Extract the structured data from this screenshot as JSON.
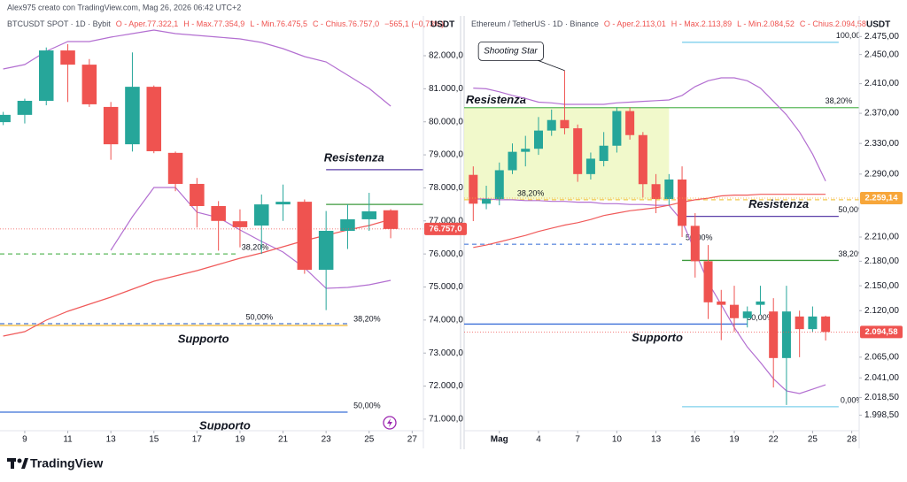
{
  "attribution": "Alex975 creato con TradingView.com, Mag 26, 2026 06:42 UTC+2",
  "brand": "TradingView",
  "chart_data": [
    {
      "type": "candlestick",
      "info": "BTCUSDT SPOT · 1D · Bybit",
      "ohlc_text": [
        "O - Aper.77.322,1",
        "H - Max.77.354,9",
        "L - Min.76.475,5",
        "C - Chius.76.757,0"
      ],
      "change": "−565,1 (−0,73%)",
      "unit": "USDT",
      "x": [
        8,
        9,
        10,
        11,
        12,
        13,
        14,
        15,
        16,
        17,
        18,
        19,
        20,
        21,
        22,
        23,
        24,
        25,
        26
      ],
      "open": [
        79990,
        80210,
        80635,
        82160,
        81730,
        80450,
        79320,
        81060,
        79060,
        78120,
        77450,
        76990,
        76860,
        77500,
        77580,
        75520,
        76700,
        77050,
        77322.1
      ],
      "high": [
        80300,
        80700,
        82250,
        82350,
        81900,
        80600,
        82100,
        81100,
        79100,
        78300,
        77600,
        77350,
        77800,
        78100,
        77650,
        77300,
        77500,
        77850,
        77354.9
      ],
      "low": [
        79900,
        79950,
        80500,
        80600,
        80450,
        78850,
        79100,
        79050,
        77900,
        76800,
        76100,
        76200,
        76000,
        77000,
        75400,
        74300,
        76150,
        76700,
        76475.5
      ],
      "close": [
        80210,
        80635,
        82160,
        81730,
        80530,
        79320,
        81060,
        79110,
        78120,
        77450,
        77000,
        76810,
        77500,
        77580,
        75520,
        76700,
        77050,
        77290,
        76757
      ],
      "up_color": "#26a69a",
      "down_color": "#ef5350",
      "lines": [
        {
          "color": "#b36fd1",
          "values": [
            81599,
            81732,
            82134,
            82428,
            82428,
            82562,
            82669,
            82776,
            82669,
            82616,
            82562,
            82509,
            82402,
            82214,
            81973,
            81813,
            81411,
            81010,
            80474
          ]
        },
        {
          "color": "#b36fd1",
          "values": [
            null,
            null,
            null,
            null,
            null,
            76111,
            77128,
            78011,
            78011,
            77262,
            77101,
            76727,
            76378,
            76057,
            75576,
            74960,
            74986,
            75067,
            75201
          ]
        },
        {
          "color": "#f05a5a",
          "values": [
            73514,
            73648,
            73996,
            74264,
            74478,
            74692,
            74933,
            75174,
            75334,
            75495,
            75683,
            75870,
            76030,
            76218,
            76405,
            76566,
            76726,
            76860,
            77047
          ]
        }
      ],
      "levels": [
        {
          "value": 78550,
          "color": "#5b3fa8",
          "from": 23,
          "to": 27.5,
          "labels": [
            {
              "text": "Resistenza",
              "at": 24.3,
              "pos": "above",
              "size": "big"
            }
          ]
        },
        {
          "value": 77500,
          "color": "#3d9a3d",
          "from": 23,
          "to": 27.5
        },
        {
          "value": 76000,
          "color": "#5cb85c",
          "dash": true,
          "from": 7.85,
          "to": 18.8,
          "labels": [
            {
              "text": "38,20%",
              "at": 19.7,
              "pos": "above"
            }
          ]
        },
        {
          "value": 73890,
          "color": "#4a78d0",
          "dash": true,
          "from": 7.85,
          "to": 24,
          "labels": [
            {
              "text": "50,00%",
              "at": 19.9,
              "pos": "above"
            }
          ]
        },
        {
          "value": 73835,
          "color": "#f2b830",
          "from": 7.85,
          "to": 24,
          "labels": [
            {
              "text": "Supporto",
              "at": 17.3,
              "pos": "below",
              "size": "big"
            },
            {
              "text": "38,20%",
              "at": 24.9,
              "pos": "above"
            }
          ]
        },
        {
          "value": 71212,
          "color": "#3a6fd8",
          "from": 7.85,
          "to": 24,
          "labels": [
            {
              "text": "Supporto",
              "at": 18.3,
              "pos": "below",
              "size": "big"
            },
            {
              "text": "50,00%",
              "at": 24.9,
              "pos": "above"
            }
          ]
        }
      ],
      "last_price": {
        "value": 76757,
        "label": "76.757,0",
        "color": "#ef5350"
      },
      "xlim": [
        7.85,
        27.52
      ],
      "xticks": [
        9,
        11,
        13,
        15,
        17,
        19,
        21,
        23,
        25,
        27
      ],
      "ylim": [
        70650,
        83205
      ],
      "yticks": [
        {
          "value": 71000,
          "label": "71.000,0"
        },
        {
          "value": 72000,
          "label": "72.000,0"
        },
        {
          "value": 73000,
          "label": "73.000,0"
        },
        {
          "value": 74000,
          "label": "74.000,0"
        },
        {
          "value": 75000,
          "label": "75.000,0"
        },
        {
          "value": 76000,
          "label": "76.000,0"
        },
        {
          "value": 77000,
          "label": "77.000,0"
        },
        {
          "value": 78000,
          "label": "78.000,0"
        },
        {
          "value": 79000,
          "label": "79.000,0"
        },
        {
          "value": 80000,
          "label": "80.000,0"
        },
        {
          "value": 81000,
          "label": "81.000,0"
        },
        {
          "value": 82000,
          "label": "82.000,0"
        }
      ]
    },
    {
      "type": "candlestick",
      "info": "Ethereum / TetherUS · 1D · Binance",
      "ohlc_text": [
        "O - Aper.2.113,01",
        "H - Max.2.113,89",
        "L - Min.2.084,52",
        "C - Chius.2.094,58"
      ],
      "unit": "USDT",
      "log": true,
      "x": [
        -1,
        0,
        1,
        2,
        3,
        4,
        5,
        6,
        7,
        8,
        9,
        10,
        11,
        12,
        13,
        14,
        15,
        16,
        17,
        18,
        19,
        20,
        21,
        22,
        23,
        24,
        25,
        26
      ],
      "open": [
        2289,
        2252,
        2258,
        2295,
        2319,
        2323,
        2347,
        2361,
        2350,
        2290,
        2307,
        2327,
        2373,
        2341,
        2277,
        2258,
        2283,
        2224,
        2180,
        2131,
        2127,
        2111,
        2127,
        2119,
        2064,
        2113,
        2098,
        2113.01
      ],
      "high": [
        2300,
        2275,
        2305,
        2330,
        2340,
        2365,
        2375,
        2428,
        2355,
        2318,
        2345,
        2378,
        2378,
        2345,
        2290,
        2290,
        2300,
        2240,
        2200,
        2145,
        2150,
        2125,
        2150,
        2135,
        2150,
        2120,
        2125,
        2113.89
      ],
      "low": [
        2230,
        2245,
        2250,
        2290,
        2300,
        2315,
        2340,
        2342,
        2280,
        2283,
        2300,
        2318,
        2335,
        2260,
        2240,
        2250,
        2210,
        2160,
        2110,
        2085,
        2095,
        2100,
        2115,
        2030,
        2010,
        2065,
        2095,
        2084.52
      ],
      "close": [
        2252,
        2258,
        2295,
        2319,
        2323,
        2347,
        2361,
        2350,
        2290,
        2310,
        2327,
        2373,
        2341,
        2277,
        2258,
        2283,
        2224,
        2180,
        2130,
        2127,
        2111,
        2119,
        2131,
        2064,
        2119,
        2098,
        2113,
        2094.58
      ],
      "up_color": "#26a69a",
      "down_color": "#ef5350",
      "lines": [
        {
          "color": "#b36fd1",
          "values": [
            2404,
            2403,
            2399,
            2394,
            2390,
            2385,
            2384,
            2382,
            2382,
            2382,
            2382,
            2384,
            2385,
            2386,
            2387,
            2388,
            2394,
            2406,
            2414,
            2418,
            2418,
            2414,
            2404,
            2386,
            2368,
            2345,
            2316,
            2281
          ]
        },
        {
          "color": "#b36fd1",
          "values": [
            2258,
            2258,
            2257,
            2257,
            2256,
            2256,
            2255,
            2255,
            2254,
            2254,
            2252,
            2252,
            2251,
            2251,
            2250,
            2250,
            2230,
            2192,
            2154,
            2127,
            2100,
            2077,
            2059,
            2040,
            2026,
            2023,
            2028,
            2033
          ]
        },
        {
          "color": "#f05a5a",
          "values": [
            2197,
            2200,
            2204,
            2208,
            2212,
            2217,
            2221,
            2225,
            2228,
            2232,
            2237,
            2240,
            2243,
            2245,
            2247,
            2250,
            2254,
            2257,
            2259,
            2262,
            2263,
            2263,
            2264,
            2264,
            2264,
            2264,
            2264,
            2264
          ]
        }
      ],
      "zone": {
        "from": -1.7,
        "to": 14,
        "low": 2257,
        "high": 2377.5,
        "color": "#eef8c2",
        "label": "Resistenza",
        "label_color": "#e0506a"
      },
      "levels": [
        {
          "value": 2467,
          "color": "#7fd0ec",
          "from": 15,
          "to": 27,
          "labels": [
            {
              "text": "100,00%",
              "at": 28,
              "pos": "above"
            }
          ]
        },
        {
          "value": 2377.5,
          "color": "#5cb85c",
          "from": -1.7,
          "to": 28.6,
          "labels": [
            {
              "text": "38,20%",
              "at": 27,
              "pos": "above"
            }
          ]
        },
        {
          "value": 2257,
          "color": "#f2c94c",
          "dash": true,
          "from": -1.7,
          "to": 28.6,
          "labels": [
            {
              "text": "38,20%",
              "at": 3.4,
              "pos": "above"
            }
          ]
        },
        {
          "value": 2236,
          "color": "#5b3fa8",
          "from": 15,
          "to": 27,
          "labels": [
            {
              "text": "Resistenza",
              "at": 22.4,
              "pos": "above",
              "size": "big"
            },
            {
              "text": "50,00%",
              "at": 28,
              "pos": "above"
            }
          ]
        },
        {
          "value": 2201,
          "color": "#6a93e0",
          "dash": true,
          "from": -1.7,
          "to": 15,
          "labels": [
            {
              "text": "50,00%",
              "at": 16.3,
              "pos": "above"
            }
          ]
        },
        {
          "value": 2181,
          "color": "#3d9a3d",
          "from": 15,
          "to": 27,
          "labels": [
            {
              "text": "38,20%",
              "at": 28,
              "pos": "above"
            }
          ]
        },
        {
          "value": 2104,
          "color": "#3a6fd8",
          "from": -1.7,
          "to": 20,
          "labels": [
            {
              "text": "50,00%",
              "at": 21,
              "pos": "above"
            },
            {
              "text": "Supporto",
              "at": 13.1,
              "pos": "below",
              "size": "big"
            }
          ]
        },
        {
          "value": 2008,
          "color": "#7fd0ec",
          "from": 15,
          "to": 27,
          "labels": [
            {
              "text": "0,00%",
              "at": 28,
              "pos": "above"
            }
          ]
        }
      ],
      "annotation": {
        "text": "Shooting Star",
        "x": 6,
        "y": 2428
      },
      "tag": {
        "value": 2259.14,
        "label": "2.259,14",
        "color": "#f7a63a"
      },
      "last_price": {
        "value": 2094.58,
        "label": "2.094,58",
        "color": "#ef5350"
      },
      "xlim": [
        -1.7,
        28.57
      ],
      "xticks": [
        {
          "value": 1,
          "label": "Mag"
        },
        4,
        7,
        10,
        13,
        16,
        19,
        22,
        25,
        28
      ],
      "ylim": [
        1981,
        2504
      ],
      "yticks": [
        {
          "value": 1998.5,
          "label": "1.998,50"
        },
        {
          "value": 2018.5,
          "label": "2.018,50"
        },
        {
          "value": 2041,
          "label": "2.041,00"
        },
        {
          "value": 2065,
          "label": "2.065,00"
        },
        {
          "value": 2120,
          "label": "2.120,00"
        },
        {
          "value": 2150,
          "label": "2.150,00"
        },
        {
          "value": 2180,
          "label": "2.180,00"
        },
        {
          "value": 2210,
          "label": "2.210,00"
        },
        {
          "value": 2290,
          "label": "2.290,00"
        },
        {
          "value": 2330,
          "label": "2.330,00"
        },
        {
          "value": 2370,
          "label": "2.370,00"
        },
        {
          "value": 2410,
          "label": "2.410,00"
        },
        {
          "value": 2450,
          "label": "2.450,00"
        },
        {
          "value": 2475,
          "label": "2.475,00"
        }
      ]
    }
  ]
}
